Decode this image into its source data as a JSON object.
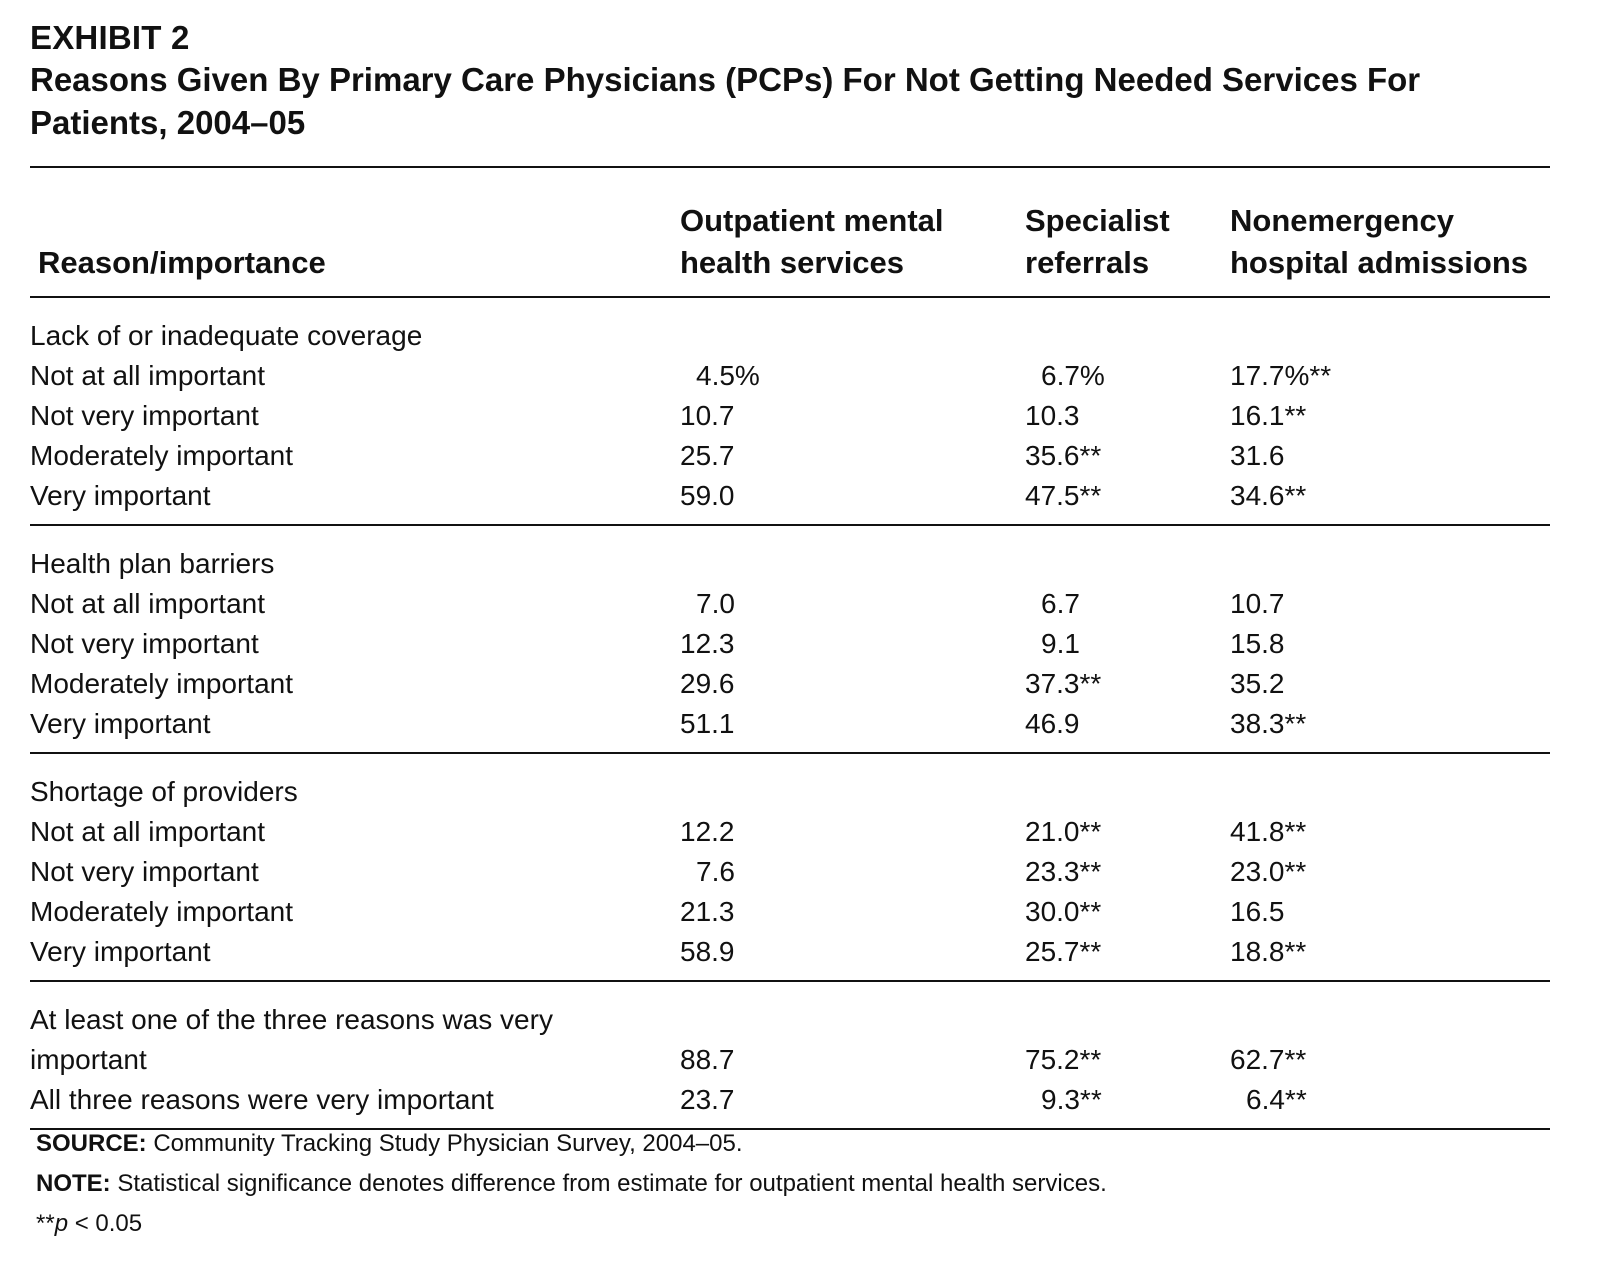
{
  "exhibit": {
    "label": "EXHIBIT 2",
    "title": "Reasons Given By Primary Care Physicians (PCPs) For Not Getting Needed Services For Patients, 2004–05"
  },
  "table": {
    "headers": [
      "Reason/importance",
      "Outpatient mental health services",
      "Specialist referrals",
      "Nonemergency hospital admissions"
    ],
    "groups": [
      {
        "title": "Lack of or inadequate coverage",
        "rows": [
          {
            "label": "Not at all important",
            "values": [
              "4.5%",
              "6.7%",
              "17.7%**"
            ]
          },
          {
            "label": "Not very important",
            "values": [
              "10.7",
              "10.3",
              "16.1**"
            ]
          },
          {
            "label": "Moderately important",
            "values": [
              "25.7",
              "35.6**",
              "31.6"
            ]
          },
          {
            "label": "Very important",
            "values": [
              "59.0",
              "47.5**",
              "34.6**"
            ]
          }
        ]
      },
      {
        "title": "Health plan barriers",
        "rows": [
          {
            "label": "Not at all important",
            "values": [
              "7.0",
              "6.7",
              "10.7"
            ]
          },
          {
            "label": "Not very important",
            "values": [
              "12.3",
              "9.1",
              "15.8"
            ]
          },
          {
            "label": "Moderately important",
            "values": [
              "29.6",
              "37.3**",
              "35.2"
            ]
          },
          {
            "label": "Very important",
            "values": [
              "51.1",
              "46.9",
              "38.3**"
            ]
          }
        ]
      },
      {
        "title": "Shortage of providers",
        "rows": [
          {
            "label": "Not at all important",
            "values": [
              "12.2",
              "21.0**",
              "41.8**"
            ]
          },
          {
            "label": "Not very important",
            "values": [
              "7.6",
              "23.3**",
              "23.0**"
            ]
          },
          {
            "label": "Moderately important",
            "values": [
              "21.3",
              "30.0**",
              "16.5"
            ]
          },
          {
            "label": "Very important",
            "values": [
              "58.9",
              "25.7**",
              "18.8**"
            ]
          }
        ]
      }
    ],
    "summary": {
      "line1": "At least one of the three reasons was very",
      "line1_cont": "important",
      "line1_values": [
        "88.7",
        "75.2**",
        "62.7**"
      ],
      "line2": "All three reasons were very important",
      "line2_values": [
        "23.7",
        "9.3**",
        "6.4**"
      ]
    }
  },
  "footnotes": {
    "source_label": "SOURCE:",
    "source_text": "Community Tracking Study Physician Survey, 2004–05.",
    "note_label": "NOTE:",
    "note_text": "Statistical significance denotes difference from estimate for outpatient mental health services.",
    "significance_prefix": "**",
    "significance_p": "p",
    "significance_rest": " < 0.05"
  }
}
